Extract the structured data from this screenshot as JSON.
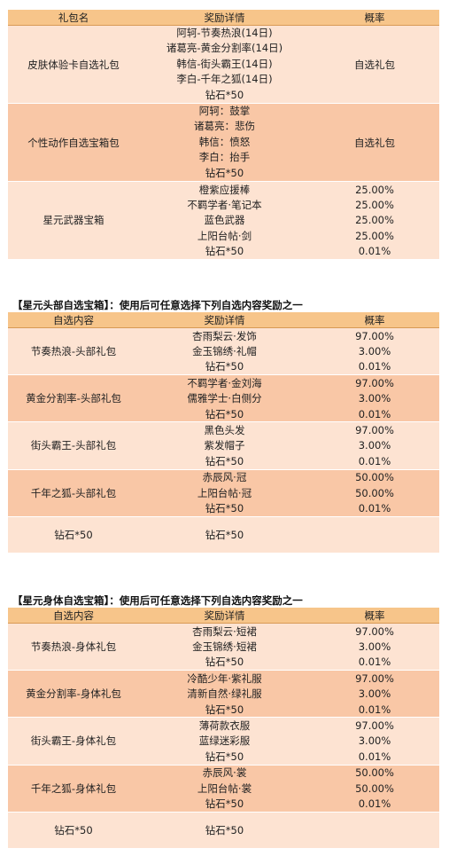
{
  "table1": {
    "headers": [
      "礼包名",
      "奖励详情",
      "概率"
    ],
    "groups": [
      {
        "name": "皮肤体验卡自选礼包",
        "items": [
          "阿轲-节奏热浪(14日)",
          "诸葛亮-黄金分割率(14日)",
          "韩信-街头霸王(14日)",
          "李白-千年之狐(14日)",
          "钻石*50"
        ],
        "prob": "自选礼包",
        "shade": "lt"
      },
      {
        "name": "个性动作自选宝箱包",
        "items": [
          "阿轲：鼓掌",
          "诸葛亮：悲伤",
          "韩信：愤怒",
          "李白：抬手",
          "钻石*50"
        ],
        "prob": "自选礼包",
        "shade": "dk"
      }
    ],
    "group3": {
      "name": "星元武器宝箱",
      "rows": [
        {
          "item": "橙紫应援棒",
          "prob": "25.00%"
        },
        {
          "item": "不羁学者·笔记本",
          "prob": "25.00%"
        },
        {
          "item": "蓝色武器",
          "prob": "25.00%"
        },
        {
          "item": "上阳台帖·剑",
          "prob": "25.00%"
        },
        {
          "item": "钻石*50",
          "prob": "0.01%"
        }
      ]
    }
  },
  "table2": {
    "title": "【星元头部自选宝箱】：使用后可任意选择下列自选内容奖励之一",
    "headers": [
      "自选内容",
      "奖励详情",
      "概率"
    ],
    "groups": [
      {
        "name": "节奏热浪-头部礼包",
        "shade": "lt",
        "rows": [
          {
            "item": "杏雨梨云·发饰",
            "prob": "97.00%"
          },
          {
            "item": "金玉锦绣·礼帽",
            "prob": "3.00%"
          },
          {
            "item": "钻石*50",
            "prob": "0.01%"
          }
        ]
      },
      {
        "name": "黄金分割率-头部礼包",
        "shade": "dk",
        "rows": [
          {
            "item": "不羁学者·金刘海",
            "prob": "97.00%"
          },
          {
            "item": "儒雅学士·白侧分",
            "prob": "3.00%"
          },
          {
            "item": "钻石*50",
            "prob": "0.01%"
          }
        ]
      },
      {
        "name": "街头霸王-头部礼包",
        "shade": "lt",
        "rows": [
          {
            "item": "黑色头发",
            "prob": "97.00%"
          },
          {
            "item": "紫发帽子",
            "prob": "3.00%"
          },
          {
            "item": "钻石*50",
            "prob": "0.01%"
          }
        ]
      },
      {
        "name": "千年之狐-头部礼包",
        "shade": "dk",
        "rows": [
          {
            "item": "赤辰风·冠",
            "prob": "50.00%"
          },
          {
            "item": "上阳台帖·冠",
            "prob": "50.00%"
          },
          {
            "item": "钻石*50",
            "prob": "0.01%"
          }
        ]
      }
    ],
    "last": {
      "name": "钻石*50",
      "item": "钻石*50",
      "prob": ""
    }
  },
  "table3": {
    "title": "【星元身体自选宝箱】：使用后可任意选择下列自选内容奖励之一",
    "headers": [
      "自选内容",
      "奖励详情",
      "概率"
    ],
    "groups": [
      {
        "name": "节奏热浪-身体礼包",
        "shade": "lt",
        "rows": [
          {
            "item": "杏雨梨云·短裙",
            "prob": "97.00%"
          },
          {
            "item": "金玉锦绣·短裙",
            "prob": "3.00%"
          },
          {
            "item": "钻石*50",
            "prob": "0.01%"
          }
        ]
      },
      {
        "name": "黄金分割率-身体礼包",
        "shade": "dk",
        "rows": [
          {
            "item": "冷酷少年·紫礼服",
            "prob": "97.00%"
          },
          {
            "item": "清新自然·绿礼服",
            "prob": "3.00%"
          },
          {
            "item": "钻石*50",
            "prob": "0.01%"
          }
        ]
      },
      {
        "name": "街头霸王-身体礼包",
        "shade": "lt",
        "rows": [
          {
            "item": "薄荷款衣服",
            "prob": "97.00%"
          },
          {
            "item": "蓝绿迷彩服",
            "prob": "3.00%"
          },
          {
            "item": "钻石*50",
            "prob": "0.01%"
          }
        ]
      },
      {
        "name": "千年之狐-身体礼包",
        "shade": "dk",
        "rows": [
          {
            "item": "赤辰风·裳",
            "prob": "50.00%"
          },
          {
            "item": "上阳台帖·裳",
            "prob": "50.00%"
          },
          {
            "item": "钻石*50",
            "prob": "0.01%"
          }
        ]
      }
    ],
    "last": {
      "name": "钻石*50",
      "item": "钻石*50",
      "prob": ""
    }
  }
}
